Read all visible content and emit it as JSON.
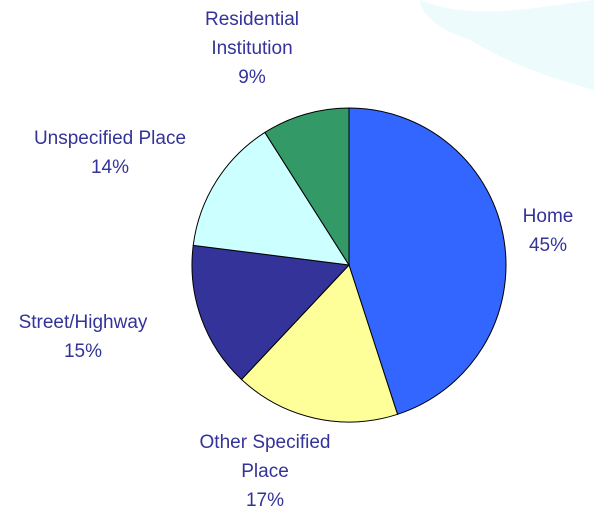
{
  "chart_data": {
    "type": "pie",
    "categories": [
      "Home",
      "Other Specified Place",
      "Street/Highway",
      "Unspecified Place",
      "Residential Institution"
    ],
    "values": [
      45,
      17,
      15,
      14,
      9
    ],
    "value_labels": [
      "45%",
      "17%",
      "15%",
      "14%",
      "9%"
    ],
    "colors": [
      "#3366ff",
      "#ffff99",
      "#333399",
      "#ccffff",
      "#339966"
    ]
  }
}
